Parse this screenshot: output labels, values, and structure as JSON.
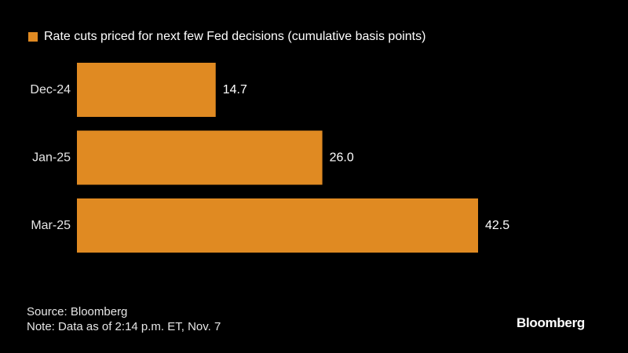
{
  "legend": {
    "label": "Rate cuts priced for next few Fed decisions (cumulative basis points)",
    "color": "#E08A22"
  },
  "chart_data": {
    "type": "bar",
    "orientation": "horizontal",
    "categories": [
      "Dec-24",
      "Jan-25",
      "Mar-25"
    ],
    "values": [
      14.7,
      26.0,
      42.5
    ],
    "value_labels": [
      "14.7",
      "26.0",
      "42.5"
    ],
    "series": [
      {
        "name": "Rate cuts priced for next few Fed decisions (cumulative basis points)",
        "values": [
          14.7,
          26.0,
          42.5
        ]
      }
    ],
    "xlim": [
      0,
      42.5
    ],
    "grid": false,
    "legend_position": "top-left",
    "bar_color": "#E08A22"
  },
  "footer": {
    "source": "Source: Bloomberg",
    "note": "Note: Data as of 2:14 p.m. ET, Nov. 7"
  },
  "brand": {
    "logo_text": "Bloomberg"
  }
}
